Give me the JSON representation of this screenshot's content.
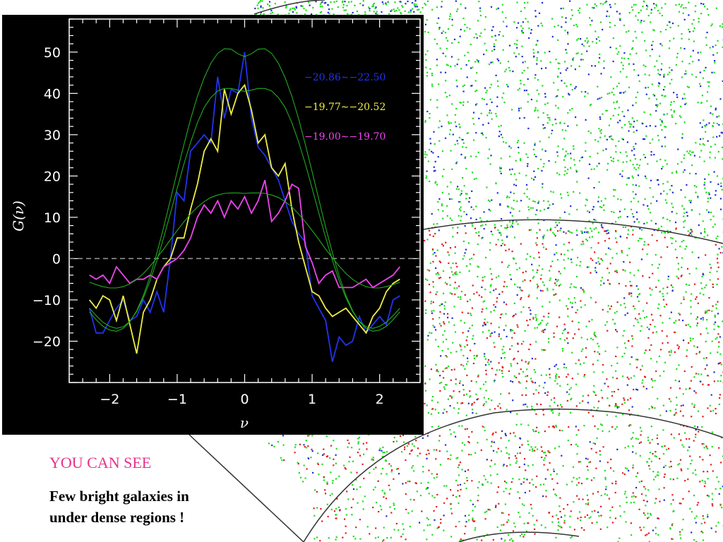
{
  "caption": {
    "heading": "YOU CAN SEE",
    "line1": "Few bright galaxies in",
    "line2": "under dense regions !"
  },
  "colors": {
    "caption_heading": "#e8338a",
    "bright_galaxies": "#1f2fd6",
    "mid_galaxies": "#22dd22",
    "faint_galaxies": "#e02020",
    "fit_curve": "#22aa22",
    "zero_line": "#9a9a9a"
  },
  "chart_data": {
    "type": "line",
    "title": "",
    "xlabel": "ν",
    "ylabel": "G(ν)",
    "xlim": [
      -2.6,
      2.6
    ],
    "ylim": [
      -30,
      58
    ],
    "xticks": [
      -2,
      -1,
      0,
      1,
      2
    ],
    "xtick_labels": [
      "−2",
      "−1",
      "0",
      "1",
      "2"
    ],
    "yticks": [
      -20,
      -10,
      0,
      10,
      20,
      30,
      40,
      50
    ],
    "ytick_labels": [
      "−20",
      "−10",
      "0",
      "10",
      "20",
      "30",
      "40",
      "50"
    ],
    "zero_line": true,
    "legend_placement": "top-right",
    "series": [
      {
        "name": "−20.86∼−22.50",
        "color": "#2233ee",
        "x": [
          -2.3,
          -2.2,
          -2.1,
          -2.0,
          -1.9,
          -1.8,
          -1.7,
          -1.6,
          -1.5,
          -1.4,
          -1.3,
          -1.2,
          -1.1,
          -1.0,
          -0.9,
          -0.8,
          -0.7,
          -0.6,
          -0.5,
          -0.4,
          -0.3,
          -0.2,
          -0.1,
          0.0,
          0.1,
          0.2,
          0.3,
          0.4,
          0.5,
          0.6,
          0.7,
          0.8,
          0.9,
          1.0,
          1.1,
          1.2,
          1.3,
          1.4,
          1.5,
          1.6,
          1.7,
          1.8,
          1.9,
          2.0,
          2.1,
          2.2,
          2.3
        ],
        "y": [
          -12,
          -18,
          -18,
          -15,
          -12,
          -10,
          -15,
          -14,
          -10,
          -13,
          -8,
          -13,
          0,
          16,
          14,
          26,
          28,
          30,
          28,
          44,
          34,
          41,
          40,
          50,
          34,
          27,
          25,
          22,
          19,
          14,
          9,
          6,
          4,
          -9,
          -12,
          -15,
          -25,
          -19,
          -21,
          -20,
          -14,
          -18,
          -16,
          -14,
          -16,
          -10,
          -9
        ]
      },
      {
        "name": "−19.77∼−20.52",
        "color": "#eeee44",
        "x": [
          -2.3,
          -2.2,
          -2.1,
          -2.0,
          -1.9,
          -1.8,
          -1.7,
          -1.6,
          -1.5,
          -1.4,
          -1.3,
          -1.2,
          -1.1,
          -1.0,
          -0.9,
          -0.8,
          -0.7,
          -0.6,
          -0.5,
          -0.4,
          -0.3,
          -0.2,
          -0.1,
          0.0,
          0.1,
          0.2,
          0.3,
          0.4,
          0.5,
          0.6,
          0.7,
          0.8,
          0.9,
          1.0,
          1.1,
          1.2,
          1.3,
          1.4,
          1.5,
          1.6,
          1.7,
          1.8,
          1.9,
          2.0,
          2.1,
          2.2,
          2.3
        ],
        "y": [
          -10,
          -12,
          -9,
          -10,
          -15,
          -9,
          -16,
          -23,
          -13,
          -10,
          -5,
          -2,
          0,
          5,
          5,
          12,
          18,
          26,
          29,
          26,
          41,
          35,
          40,
          42,
          36,
          28,
          30,
          22,
          20,
          23,
          12,
          4,
          -2,
          -8,
          -9,
          -12,
          -14,
          -13,
          -12,
          -14,
          -16,
          -18,
          -14,
          -12,
          -8,
          -6,
          -5
        ]
      },
      {
        "name": "−19.00∼−19.70",
        "color": "#ee44ee",
        "x": [
          -2.3,
          -2.2,
          -2.1,
          -2.0,
          -1.9,
          -1.8,
          -1.7,
          -1.6,
          -1.5,
          -1.4,
          -1.3,
          -1.2,
          -1.1,
          -1.0,
          -0.9,
          -0.8,
          -0.7,
          -0.6,
          -0.5,
          -0.4,
          -0.3,
          -0.2,
          -0.1,
          0.0,
          0.1,
          0.2,
          0.3,
          0.4,
          0.5,
          0.6,
          0.7,
          0.8,
          0.9,
          1.0,
          1.1,
          1.2,
          1.3,
          1.4,
          1.5,
          1.6,
          1.7,
          1.8,
          1.9,
          2.0,
          2.1,
          2.2,
          2.3
        ],
        "y": [
          -4,
          -5,
          -4,
          -6,
          -2,
          -4,
          -6,
          -5,
          -5,
          -4,
          -5,
          -2,
          -1,
          0,
          2,
          5,
          10,
          13,
          11,
          14,
          10,
          14,
          12,
          15,
          11,
          14,
          19,
          9,
          11,
          14,
          18,
          17,
          3,
          -1,
          -6,
          -4,
          -3,
          -7,
          -7,
          -7,
          -6,
          -5,
          -7,
          -6,
          -5,
          -4,
          -2
        ]
      },
      {
        "name": "",
        "color": "#22aa22",
        "x": [
          -2.3,
          -2.2,
          -2.1,
          -2.0,
          -1.9,
          -1.8,
          -1.7,
          -1.6,
          -1.5,
          -1.4,
          -1.3,
          -1.2,
          -1.1,
          -1.0,
          -0.9,
          -0.8,
          -0.7,
          -0.6,
          -0.5,
          -0.4,
          -0.3,
          -0.2,
          -0.1,
          0.0,
          0.1,
          0.2,
          0.3,
          0.4,
          0.5,
          0.6,
          0.7,
          0.8,
          0.9,
          1.0,
          1.1,
          1.2,
          1.3,
          1.4,
          1.5,
          1.6,
          1.7,
          1.8,
          1.9,
          2.0,
          2.1,
          2.2,
          2.3
        ],
        "y": [
          -12.9,
          -14.8,
          -16.4,
          -17.3,
          -17.6,
          -16.9,
          -15.3,
          -12.6,
          -8.9,
          -4.2,
          1.4,
          7.6,
          14.3,
          21.0,
          27.6,
          33.8,
          39.3,
          43.8,
          47.3,
          49.7,
          50.8,
          50.7,
          49.6,
          48.9,
          49.6,
          50.7,
          50.8,
          49.7,
          47.3,
          43.8,
          39.3,
          33.8,
          27.6,
          21.0,
          14.3,
          7.6,
          1.4,
          -4.2,
          -8.9,
          -12.6,
          -15.3,
          -16.9,
          -17.6,
          -17.3,
          -16.4,
          -14.8,
          -12.9
        ]
      },
      {
        "name": "",
        "color": "#22aa22",
        "x": [
          -2.3,
          -2.2,
          -2.1,
          -2.0,
          -1.9,
          -1.8,
          -1.7,
          -1.6,
          -1.5,
          -1.4,
          -1.3,
          -1.2,
          -1.1,
          -1.0,
          -0.9,
          -0.8,
          -0.7,
          -0.6,
          -0.5,
          -0.4,
          -0.3,
          -0.2,
          -0.1,
          0.0,
          0.1,
          0.2,
          0.3,
          0.4,
          0.5,
          0.6,
          0.7,
          0.8,
          0.9,
          1.0,
          1.1,
          1.2,
          1.3,
          1.4,
          1.5,
          1.6,
          1.7,
          1.8,
          1.9,
          2.0,
          2.1,
          2.2,
          2.3
        ],
        "y": [
          -12,
          -13.8,
          -15.4,
          -16.4,
          -16.9,
          -16.5,
          -15.2,
          -12.8,
          -9.5,
          -5.3,
          -0.4,
          5.1,
          11.0,
          17.0,
          22.9,
          28.2,
          32.9,
          36.6,
          39.0,
          40.6,
          41.2,
          41.2,
          40.8,
          40.5,
          40.8,
          41.2,
          41.2,
          40.6,
          39.0,
          36.6,
          32.9,
          28.2,
          22.9,
          17.0,
          11.0,
          5.1,
          -0.4,
          -5.3,
          -9.5,
          -12.8,
          -15.2,
          -16.5,
          -16.9,
          -16.4,
          -15.4,
          -13.8,
          -12
        ]
      },
      {
        "name": "",
        "color": "#22aa22",
        "x": [
          -2.3,
          -2.2,
          -2.1,
          -2.0,
          -1.9,
          -1.8,
          -1.7,
          -1.6,
          -1.5,
          -1.4,
          -1.3,
          -1.2,
          -1.1,
          -1.0,
          -0.9,
          -0.8,
          -0.7,
          -0.6,
          -0.5,
          -0.4,
          -0.3,
          -0.2,
          -0.1,
          0.0,
          0.1,
          0.2,
          0.3,
          0.4,
          0.5,
          0.6,
          0.7,
          0.8,
          0.9,
          1.0,
          1.1,
          1.2,
          1.3,
          1.4,
          1.5,
          1.6,
          1.7,
          1.8,
          1.9,
          2.0,
          2.1,
          2.2,
          2.3
        ],
        "y": [
          -5.7,
          -6.3,
          -6.8,
          -7.1,
          -7.1,
          -6.8,
          -6.1,
          -5.0,
          -3.6,
          -1.8,
          0.2,
          2.3,
          4.6,
          6.8,
          8.9,
          10.8,
          12.5,
          13.8,
          14.8,
          15.4,
          15.8,
          15.9,
          15.9,
          15.8,
          15.9,
          15.9,
          15.8,
          15.4,
          14.8,
          13.8,
          12.5,
          10.8,
          8.9,
          6.8,
          4.6,
          2.3,
          0.2,
          -1.8,
          -3.6,
          -5.0,
          -6.1,
          -6.8,
          -7.1,
          -7.1,
          -6.8,
          -6.3,
          -5.7
        ]
      }
    ]
  }
}
